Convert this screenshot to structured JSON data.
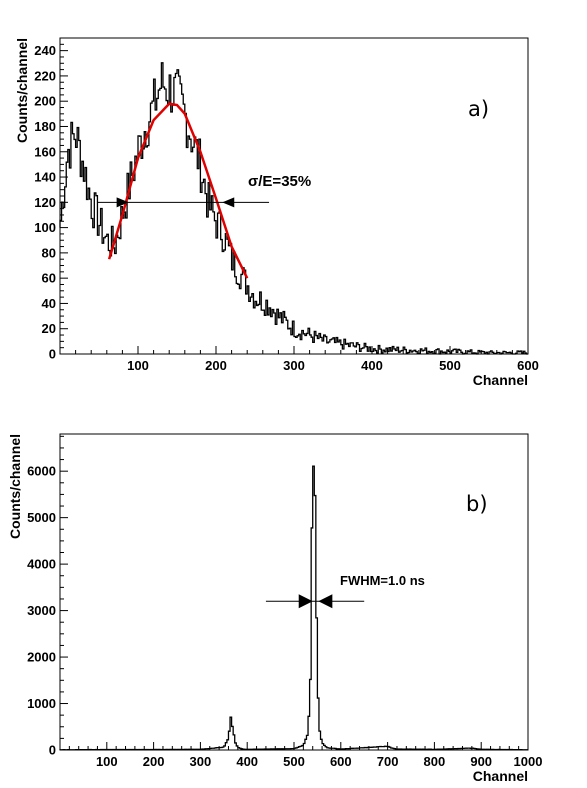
{
  "chart_data": [
    {
      "type": "line",
      "panel_label": "a)",
      "xlabel": "Channel",
      "ylabel": "Counts/channel",
      "xlim": [
        0,
        600
      ],
      "ylim": [
        0,
        250
      ],
      "x_ticks": [
        100,
        200,
        300,
        400,
        500,
        600
      ],
      "y_ticks": [
        0,
        20,
        40,
        60,
        80,
        100,
        120,
        140,
        160,
        180,
        200,
        220,
        240
      ],
      "grid": false,
      "annotation": "σ/E=35%",
      "resolution_bar": {
        "y": 120,
        "x_from": 48,
        "x_to": 268
      },
      "resolution_markers": {
        "y": 120,
        "left": 88,
        "right": 208
      },
      "series": [
        {
          "style": "histogram",
          "color": "#000000",
          "x": [
            0,
            10,
            20,
            30,
            40,
            50,
            60,
            70,
            80,
            90,
            100,
            110,
            120,
            130,
            140,
            150,
            160,
            170,
            180,
            190,
            200,
            210,
            220,
            230,
            240,
            250,
            260,
            270,
            280,
            290,
            300,
            320,
            340,
            360,
            380,
            400,
            450,
            500,
            550,
            600
          ],
          "y": [
            100,
            160,
            175,
            150,
            120,
            105,
            90,
            85,
            110,
            135,
            160,
            180,
            195,
            215,
            210,
            205,
            190,
            170,
            150,
            120,
            105,
            95,
            75,
            65,
            55,
            45,
            42,
            38,
            30,
            25,
            20,
            15,
            10,
            8,
            6,
            4,
            3,
            2,
            1,
            1
          ]
        },
        {
          "style": "fit",
          "color": "#e00000",
          "x": [
            63,
            80,
            100,
            120,
            140,
            150,
            160,
            180,
            200,
            220,
            240
          ],
          "y": [
            75,
            110,
            155,
            185,
            198,
            197,
            190,
            160,
            123,
            85,
            60
          ]
        }
      ]
    },
    {
      "type": "line",
      "panel_label": "b)",
      "xlabel": "Channel",
      "ylabel": "Counts/channel",
      "xlim": [
        0,
        1000
      ],
      "ylim": [
        0,
        6800
      ],
      "x_ticks": [
        100,
        200,
        300,
        400,
        500,
        600,
        700,
        800,
        900,
        1000
      ],
      "y_ticks": [
        0,
        1000,
        2000,
        3000,
        4000,
        5000,
        6000
      ],
      "grid": false,
      "annotation": "FWHM=1.0 ns",
      "resolution_bar": {
        "y": 3200,
        "x_from": 440,
        "x_to": 650
      },
      "resolution_markers": {
        "y": 3200,
        "left": 540,
        "right": 552
      },
      "series": [
        {
          "style": "histogram",
          "color": "#000000",
          "x": [
            0,
            100,
            200,
            300,
            350,
            360,
            365,
            370,
            375,
            380,
            390,
            400,
            500,
            520,
            530,
            535,
            540,
            545,
            550,
            555,
            560,
            570,
            600,
            700,
            710,
            720,
            800,
            880,
            900,
            1000
          ],
          "y": [
            5,
            10,
            10,
            15,
            60,
            250,
            700,
            400,
            150,
            60,
            20,
            15,
            30,
            100,
            350,
            1500,
            6400,
            5500,
            1500,
            400,
            150,
            50,
            20,
            80,
            40,
            20,
            15,
            40,
            15,
            5
          ]
        }
      ]
    }
  ]
}
